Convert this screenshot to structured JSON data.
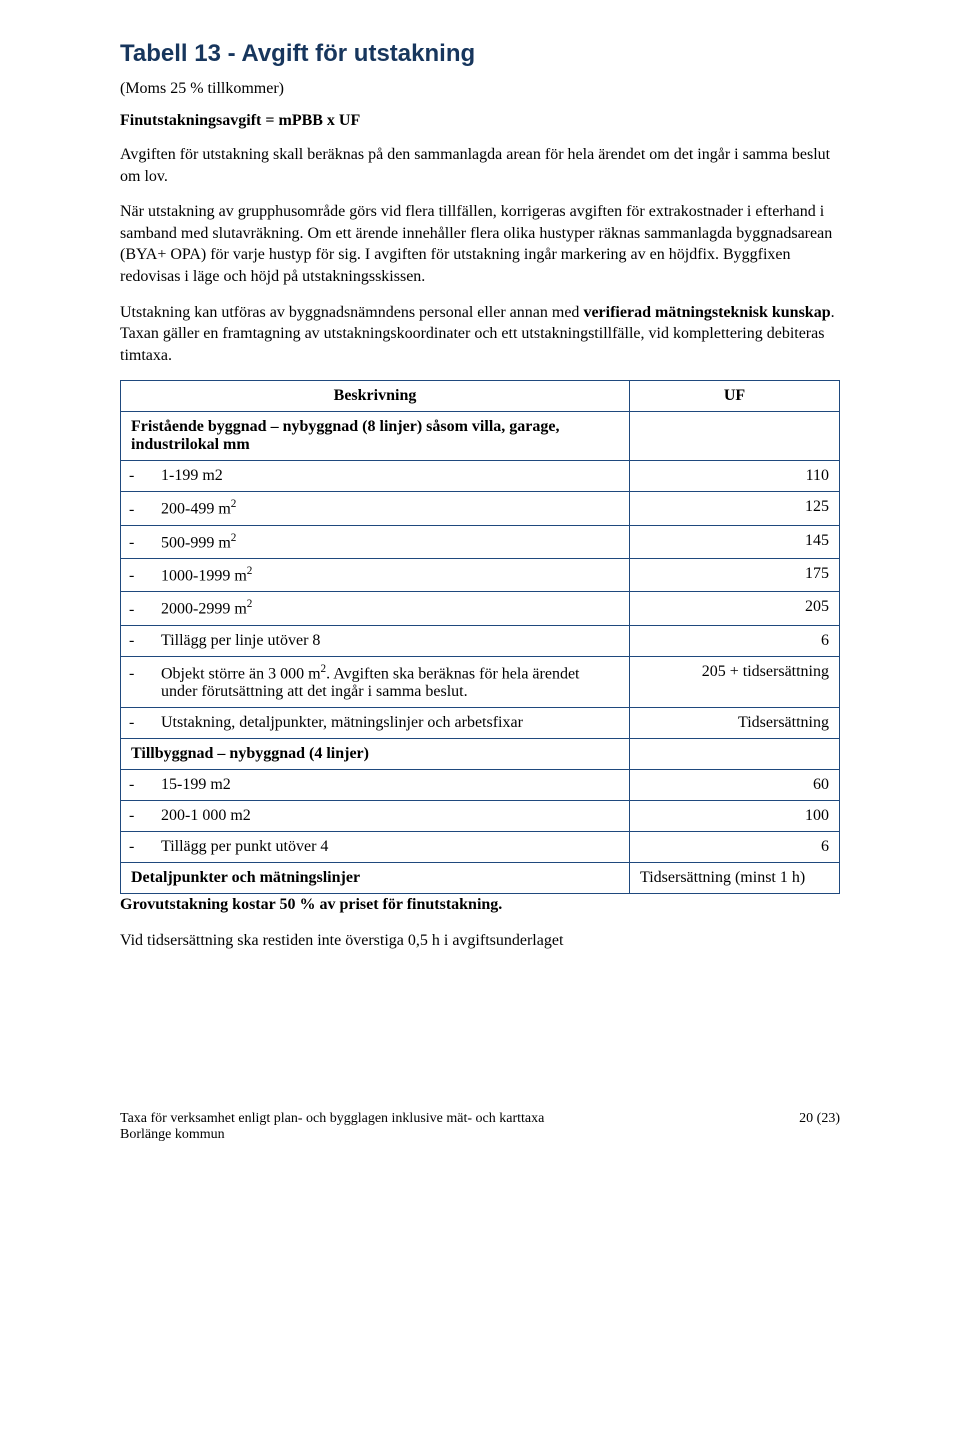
{
  "title": "Tabell 13 - Avgift för utstakning",
  "subtitle": "(Moms 25 % tillkommer)",
  "boldline": "Finutstakningsavgift = mPBB x UF",
  "para1": "Avgiften för utstakning skall beräknas på den sammanlagda arean för hela ärendet om det ingår i samma beslut om lov.",
  "para2": "När utstakning av grupphusområde görs vid flera tillfällen, korrigeras avgiften för extrakostnader i efterhand i samband med slutavräkning. Om ett ärende innehåller flera olika hustyper räknas sammanlagda byggnadsarean (BYA+ OPA) för varje hustyp för sig. I avgiften för utstakning ingår markering av en höjdfix. Byggfixen redovisas i läge och höjd på utstakningsskissen.",
  "para3_a": "Utstakning kan utföras av byggnadsnämndens personal eller annan med ",
  "para3_b": "verifierad mätningsteknisk kunskap",
  "para3_c": ". Taxan gäller en framtagning av utstakningskoordinater och ett utstakningstillfälle, vid komplettering debiteras timtaxa.",
  "headers": {
    "desc": "Beskrivning",
    "uf": "UF"
  },
  "section1": "Fristående byggnad – nybyggnad (8 linjer) såsom villa, garage, industrilokal mm",
  "rows1": [
    {
      "label": "1-199 m2",
      "uf": "110"
    },
    {
      "label": "200-499 m",
      "sup": "2",
      "uf": "125"
    },
    {
      "label": "500-999 m",
      "sup": "2",
      "uf": "145"
    },
    {
      "label": "1000-1999 m",
      "sup": "2",
      "uf": "175"
    },
    {
      "label": "2000-2999 m",
      "sup": "2",
      "uf": "205"
    },
    {
      "label": "Tillägg per linje utöver 8",
      "uf": "6"
    },
    {
      "label_a": "Objekt större än 3 000 m",
      "sup": "2",
      "label_b": ". Avgiften ska beräknas för hela ärendet under förutsättning att det ingår i samma beslut.",
      "uf": "205 + tidsersättning"
    },
    {
      "label": "Utstakning, detaljpunkter, mätningslinjer och arbetsfixar",
      "uf": "Tidsersättning"
    }
  ],
  "section2": "Tillbyggnad – nybyggnad (4 linjer)",
  "rows2": [
    {
      "label": "15-199 m2",
      "uf": "60"
    },
    {
      "label": "200-1 000 m2",
      "uf": "100"
    },
    {
      "label": "Tillägg per punkt utöver 4",
      "uf": "6"
    }
  ],
  "section3": "Detaljpunkter och mätningslinjer",
  "section3_uf": "Tidsersättning (minst 1 h)",
  "after1": "Grovutstakning kostar 50 % av priset för finutstakning.",
  "after2": "Vid tidsersättning ska restiden inte överstiga 0,5 h i avgiftsunderlaget",
  "footer_left_a": "Taxa för verksamhet enligt plan- och bygglagen inklusive mät- och karttaxa",
  "footer_left_b": "Borlänge kommun",
  "footer_right": "20 (23)"
}
